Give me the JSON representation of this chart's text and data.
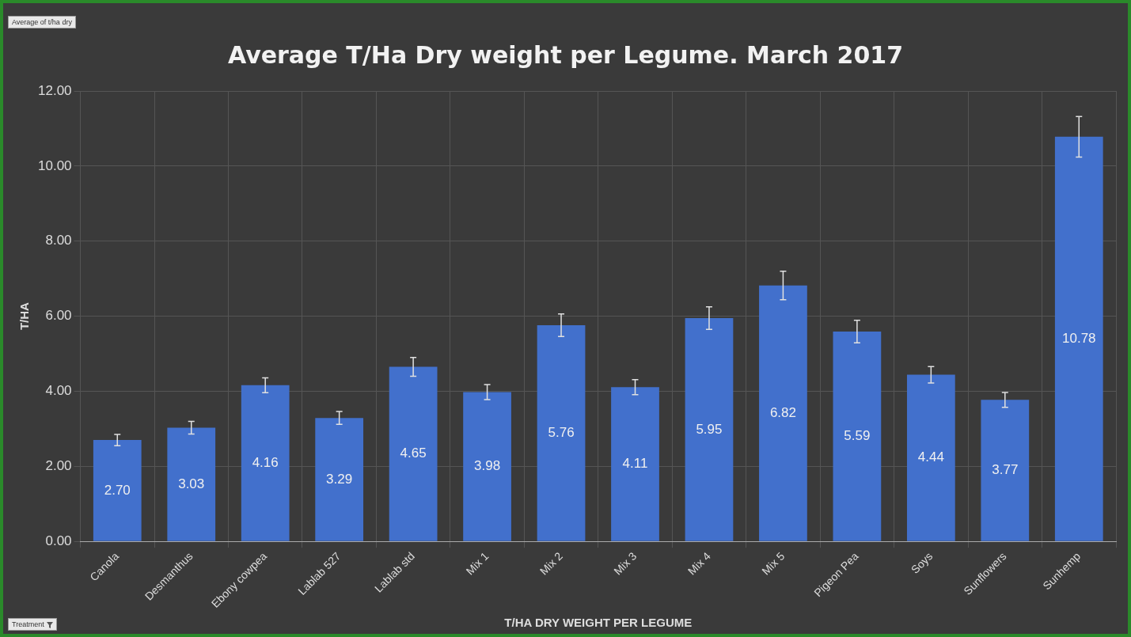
{
  "chart_data": {
    "type": "bar",
    "title": "Average T/Ha Dry weight per Legume. March 2017",
    "xlabel": "T/HA DRY WEIGHT PER LEGUME",
    "ylabel": "T/HA",
    "categories": [
      "Canola",
      "Desmanthus",
      "Ebony cowpea",
      "Lablab 527",
      "Lablab std",
      "Mix 1",
      "Mix 2",
      "Mix 3",
      "Mix 4",
      "Mix 5",
      "Pigeon Pea",
      "Soys",
      "Sunflowers",
      "Sunhemp"
    ],
    "values": [
      2.7,
      3.03,
      4.16,
      3.29,
      4.65,
      3.98,
      5.76,
      4.11,
      5.95,
      6.82,
      5.59,
      4.44,
      3.77,
      10.78
    ],
    "errors": [
      0.15,
      0.17,
      0.2,
      0.17,
      0.25,
      0.2,
      0.3,
      0.2,
      0.3,
      0.38,
      0.3,
      0.22,
      0.2,
      0.54
    ],
    "color": "#4270cc",
    "ylim": [
      0,
      12
    ],
    "yticks": [
      {
        "value": 0,
        "label": "0.00"
      },
      {
        "value": 2,
        "label": "2.00"
      },
      {
        "value": 4,
        "label": "4.00"
      },
      {
        "value": 6,
        "label": "6.00"
      },
      {
        "value": 8,
        "label": "8.00"
      },
      {
        "value": 10,
        "label": "10.00"
      },
      {
        "value": 12,
        "label": "12.00"
      }
    ],
    "value_labels": [
      "2.70",
      "3.03",
      "4.16",
      "3.29",
      "4.65",
      "3.98",
      "5.76",
      "4.11",
      "5.95",
      "6.82",
      "5.59",
      "4.44",
      "3.77",
      "10.78"
    ],
    "grid": true,
    "legend": false,
    "annotations": [
      "Average of t/ha dry",
      "Treatment"
    ]
  }
}
